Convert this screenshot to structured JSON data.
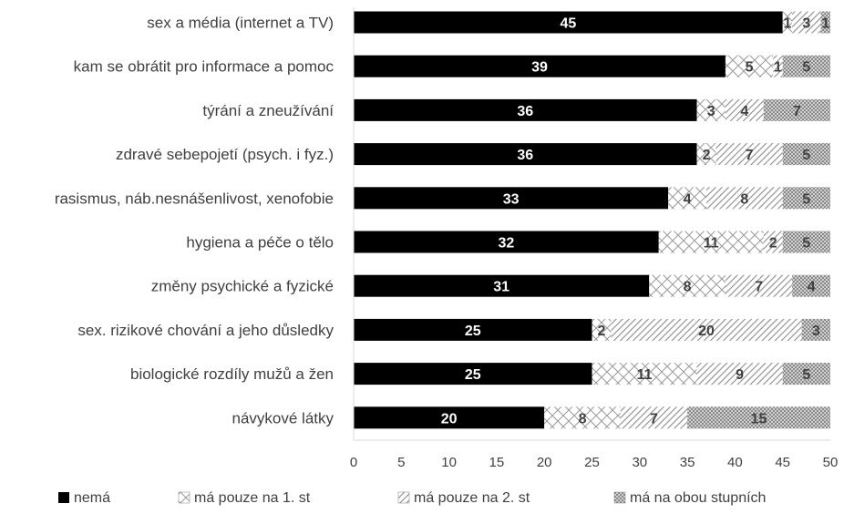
{
  "chart_data": {
    "type": "bar",
    "orientation": "horizontal",
    "stacked": true,
    "categories": [
      "sex a média (internet a TV)",
      "kam se obrátit pro informace a pomoc",
      "týrání a zneužívání",
      "zdravé sebepojetí (psych. i fyz.)",
      "rasismus, náb.nesnášenlivost, xenofobie",
      "hygiena a péče o tělo ",
      "změny psychické a fyzické",
      "sex. rizikové chování a jeho důsledky",
      "biologické rozdíly mužů a žen",
      "návykové látky"
    ],
    "series": [
      {
        "name": "nemá",
        "values": [
          45,
          39,
          36,
          36,
          33,
          32,
          31,
          25,
          25,
          20
        ],
        "pattern": "solid-black"
      },
      {
        "name": "má pouze na 1. st",
        "values": [
          1,
          5,
          3,
          2,
          4,
          11,
          8,
          2,
          11,
          8
        ],
        "pattern": "diamond-outline"
      },
      {
        "name": "má pouze na 2. st",
        "values": [
          3,
          1,
          4,
          7,
          8,
          2,
          7,
          20,
          9,
          7
        ],
        "pattern": "diagonal-hatch"
      },
      {
        "name": "má na obou stupních",
        "values": [
          1,
          5,
          7,
          5,
          5,
          5,
          4,
          3,
          5,
          15
        ],
        "pattern": "dense-crosshatch"
      }
    ],
    "xlim": [
      0,
      50
    ],
    "x_ticks": [
      "0",
      "5",
      "10",
      "15",
      "20",
      "25",
      "30",
      "35",
      "40",
      "45",
      "50"
    ],
    "legend_position": "bottom",
    "grid": false,
    "title": "",
    "xlabel": "",
    "ylabel": "",
    "colors": {
      "solid": "#000000",
      "pattern": "#a6a6a6",
      "axis": "#d9d9d9",
      "text": "#404040"
    }
  }
}
